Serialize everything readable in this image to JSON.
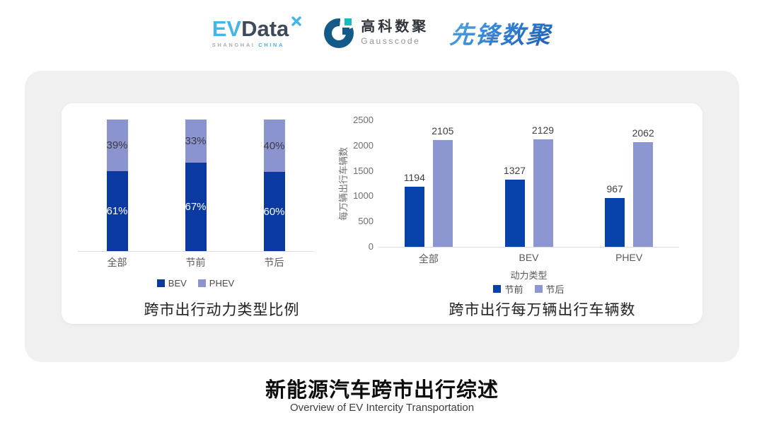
{
  "header": {
    "evdata": {
      "ev": "EV",
      "data": "Data",
      "sub_left": "SHANGHAI",
      "sub_right": "CHINA"
    },
    "gausscode": {
      "cn": "高科数聚",
      "en": "Gausscode"
    },
    "pioneer": {
      "text": "先锋数聚"
    }
  },
  "chart_data": [
    {
      "type": "bar",
      "subtype": "stacked-100-percent",
      "title": "跨市出行动力类型比例",
      "categories": [
        "全部",
        "节前",
        "节后"
      ],
      "series": [
        {
          "name": "BEV",
          "values": [
            61,
            67,
            60
          ],
          "labels": [
            "61%",
            "67%",
            "60%"
          ],
          "color": "#0a39a2",
          "label_color": "#ffffff"
        },
        {
          "name": "PHEV",
          "values": [
            39,
            33,
            40
          ],
          "labels": [
            "39%",
            "33%",
            "40%"
          ],
          "color": "#8b94ce",
          "label_color": "#3a3a44"
        }
      ],
      "xlabel": "",
      "ylabel": "",
      "ylim": [
        0,
        100
      ],
      "grid": false,
      "legend_position": "bottom"
    },
    {
      "type": "bar",
      "subtype": "grouped",
      "title": "跨市出行每万辆出行车辆数",
      "categories": [
        "全部",
        "BEV",
        "PHEV"
      ],
      "series": [
        {
          "name": "节前",
          "values": [
            1194,
            1327,
            967
          ],
          "color": "#0742ab"
        },
        {
          "name": "节后",
          "values": [
            2105,
            2129,
            2062
          ],
          "color": "#8c96d1"
        }
      ],
      "xlabel": "动力类型",
      "ylabel": "每万辆出行车辆数",
      "ylim": [
        0,
        2500
      ],
      "yticks": [
        0,
        500,
        1000,
        1500,
        2000,
        2500
      ],
      "grid": false,
      "legend_position": "bottom"
    }
  ],
  "footer": {
    "title": "新能源汽车跨市出行综述",
    "subtitle": "Overview of EV Intercity Transportation"
  },
  "colors": {
    "card_bg": "#f0f0f1",
    "panel_bg": "#ffffff",
    "dark_blue": "#0a39a2",
    "light_blue": "#8b94ce",
    "logo_light_blue": "#45b5e8",
    "logo_dark": "#3e4a59",
    "gauss_blue": "#135a88",
    "gauss_teal": "#14bcc4",
    "pioneer_blue": "#2e7bd0"
  }
}
